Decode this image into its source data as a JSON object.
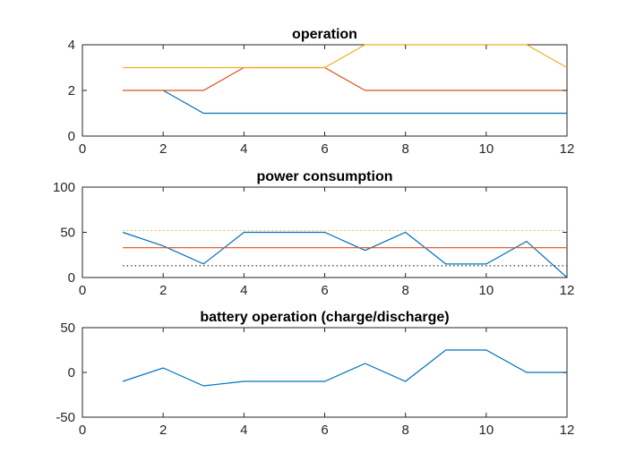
{
  "colors": {
    "series1": "#0072BD",
    "series2": "#D95319",
    "series3": "#EDB120",
    "reference_dotted": "#000000",
    "axis": "#262626",
    "background": "#ffffff"
  },
  "chart_data": [
    {
      "type": "line",
      "title": "operation",
      "xlabel": "",
      "ylabel": "",
      "xlim": [
        0,
        12
      ],
      "ylim": [
        0,
        4
      ],
      "xticks": [
        0,
        2,
        4,
        6,
        8,
        10,
        12
      ],
      "yticks": [
        0,
        2,
        4
      ],
      "grid": false,
      "x": [
        1,
        2,
        3,
        4,
        5,
        6,
        7,
        8,
        9,
        10,
        11,
        12
      ],
      "series": [
        {
          "values": [
            null,
            2,
            1,
            1,
            1,
            1,
            1,
            1,
            1,
            1,
            1,
            1
          ],
          "color": "#0072BD",
          "style": "solid"
        },
        {
          "values": [
            2,
            2,
            2,
            3,
            3,
            3,
            2,
            2,
            2,
            2,
            2,
            2
          ],
          "color": "#D95319",
          "style": "solid"
        },
        {
          "values": [
            3,
            3,
            3,
            3,
            3,
            3,
            4,
            4,
            4,
            4,
            4,
            3
          ],
          "color": "#EDB120",
          "style": "solid"
        }
      ]
    },
    {
      "type": "line",
      "title": "power consumption",
      "xlabel": "",
      "ylabel": "",
      "xlim": [
        0,
        12
      ],
      "ylim": [
        0,
        100
      ],
      "xticks": [
        0,
        2,
        4,
        6,
        8,
        10,
        12
      ],
      "yticks": [
        0,
        50,
        100
      ],
      "grid": false,
      "x": [
        1,
        2,
        3,
        4,
        5,
        6,
        7,
        8,
        9,
        10,
        11,
        12
      ],
      "series": [
        {
          "values": [
            50,
            35,
            15,
            50,
            50,
            50,
            30,
            50,
            15,
            15,
            40,
            0
          ],
          "color": "#0072BD",
          "style": "solid"
        },
        {
          "values": [
            33,
            33,
            33,
            33,
            33,
            33,
            33,
            33,
            33,
            33,
            33,
            33
          ],
          "color": "#D95319",
          "style": "solid"
        },
        {
          "values": [
            52,
            52,
            52,
            52,
            52,
            52,
            52,
            52,
            52,
            52,
            52,
            52
          ],
          "color": "#EDB120",
          "style": "dotted"
        },
        {
          "values": [
            13,
            13,
            13,
            13,
            13,
            13,
            13,
            13,
            13,
            13,
            13,
            13
          ],
          "color": "#000000",
          "style": "dotted"
        }
      ]
    },
    {
      "type": "line",
      "title": "battery operation (charge/discharge)",
      "xlabel": "",
      "ylabel": "",
      "xlim": [
        0,
        12
      ],
      "ylim": [
        -50,
        50
      ],
      "xticks": [
        0,
        2,
        4,
        6,
        8,
        10,
        12
      ],
      "yticks": [
        -50,
        0,
        50
      ],
      "grid": false,
      "x": [
        1,
        2,
        3,
        4,
        5,
        6,
        7,
        8,
        9,
        10,
        11,
        12
      ],
      "series": [
        {
          "values": [
            -10,
            5,
            -15,
            -10,
            -10,
            -10,
            10,
            -10,
            25,
            25,
            0,
            0
          ],
          "color": "#0072BD",
          "style": "solid"
        }
      ]
    }
  ]
}
